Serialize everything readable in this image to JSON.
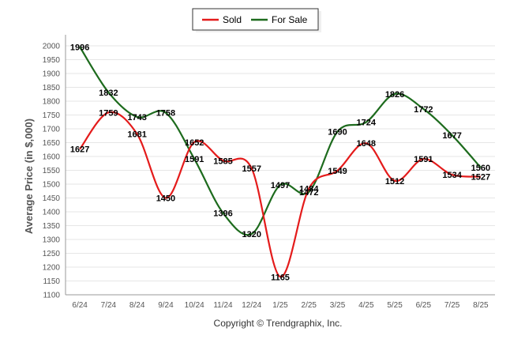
{
  "chart_data": {
    "type": "line",
    "title": "",
    "xlabel": "",
    "ylabel": "Average Price (in $,000)",
    "categories": [
      "6/24",
      "7/24",
      "8/24",
      "9/24",
      "10/24",
      "11/24",
      "12/24",
      "1/25",
      "2/25",
      "3/25",
      "4/25",
      "5/25",
      "6/25",
      "7/25",
      "8/25"
    ],
    "yticks": [
      1100,
      1150,
      1200,
      1250,
      1300,
      1350,
      1400,
      1450,
      1500,
      1550,
      1600,
      1650,
      1700,
      1750,
      1800,
      1850,
      1900,
      1950,
      2000
    ],
    "ylim": [
      1100,
      2040
    ],
    "grid": true,
    "legend_position": "top-center",
    "series": [
      {
        "name": "Sold",
        "color": "#e41b1b",
        "values": [
          1627,
          1759,
          1681,
          1450,
          1652,
          1585,
          1557,
          1165,
          1484,
          1549,
          1648,
          1512,
          1591,
          1534,
          1527
        ]
      },
      {
        "name": "For Sale",
        "color": "#1d6b1d",
        "values": [
          1996,
          1832,
          1743,
          1758,
          1591,
          1396,
          1320,
          1497,
          1472,
          1690,
          1724,
          1826,
          1772,
          1677,
          1560
        ]
      }
    ],
    "footer": "Copyright © Trendgraphix, Inc."
  }
}
